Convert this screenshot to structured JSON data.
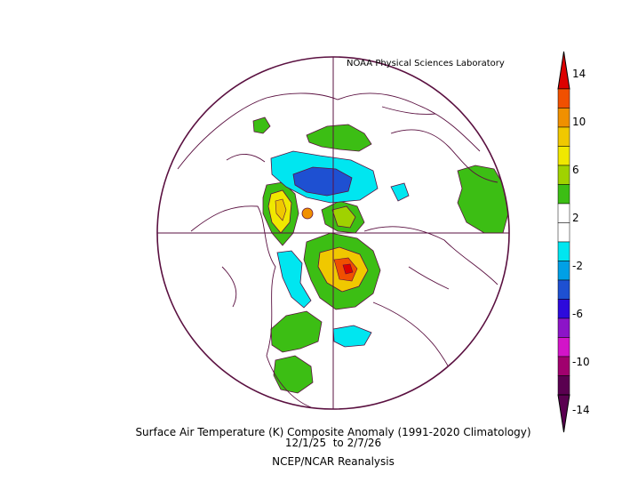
{
  "header": {
    "credit": "NOAA Physical Sciences Laboratory"
  },
  "footer": {
    "title": "Surface Air Temperature (K) Composite Anomaly (1991-2020 Climatology)",
    "dates": "12/1/25  to 2/7/26",
    "source": "NCEP/NCAR Reanalysis"
  },
  "colorbar": {
    "labels": [
      "14",
      "10",
      "6",
      "2",
      "-2",
      "-6",
      "-10",
      "-14"
    ],
    "colors": [
      "#780000",
      "#dc0000",
      "#f05000",
      "#f09000",
      "#f0c800",
      "#f0e800",
      "#a0d200",
      "#3cbe14",
      "#ffffff",
      "#ffffff",
      "#00e6f0",
      "#00a0e6",
      "#1e50d2",
      "#2d0adc",
      "#8c14c8",
      "#d214c8",
      "#a0006e",
      "#5a0050"
    ]
  },
  "map": {
    "projection": "polar-stereographic",
    "colors": {
      "outline": "#5a1040",
      "warm": "#3cbe14",
      "cold": "#00e6f0",
      "deep_cold": "#1e50d2"
    }
  }
}
